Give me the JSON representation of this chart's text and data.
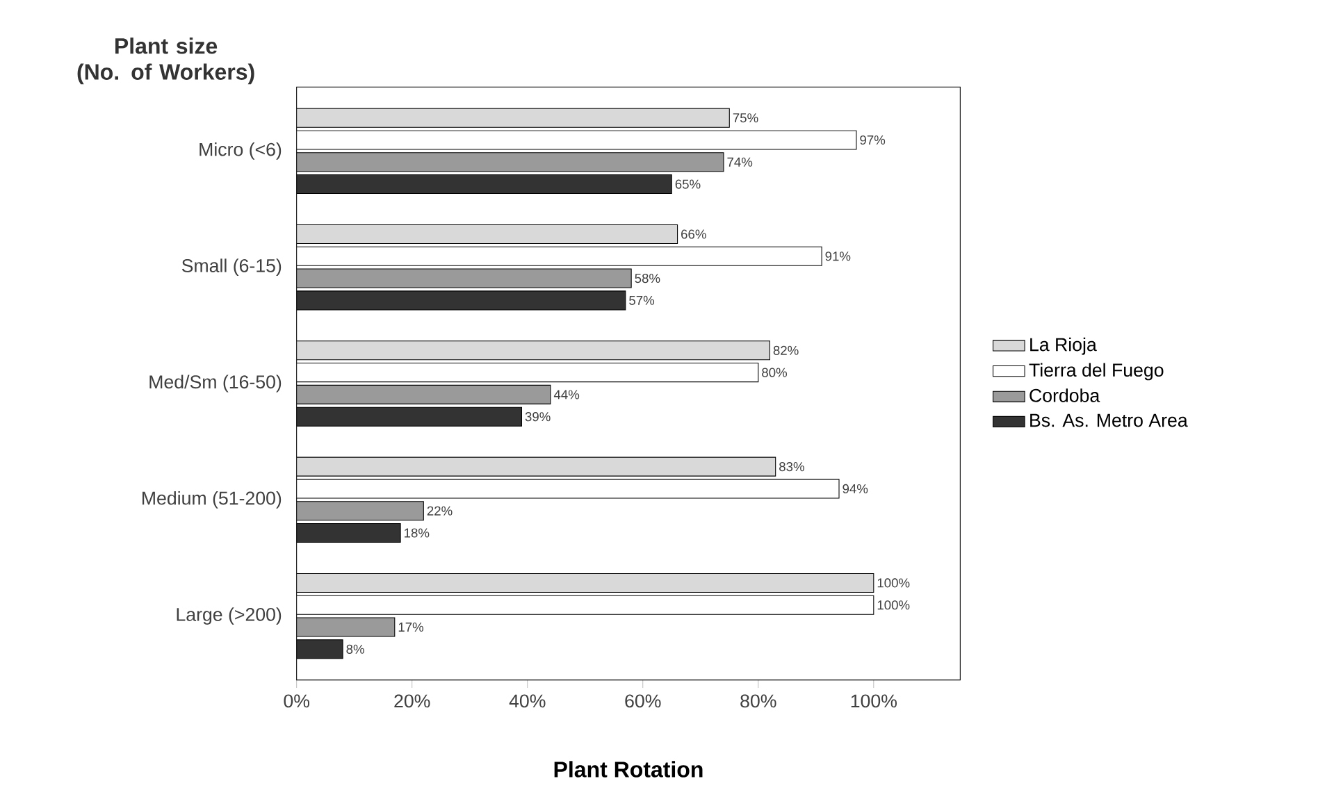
{
  "chart_data": {
    "type": "bar",
    "orientation": "horizontal",
    "ylabel": "Plant size\n(No. of Workers)",
    "xlabel": "Plant Rotation",
    "categories": [
      "Micro (<6)",
      "Small (6-15)",
      "Med/Sm (16-50)",
      "Medium (51-200)",
      "Large (>200)"
    ],
    "series": [
      {
        "name": "La Rioja",
        "color": "#d9d9d9",
        "values": [
          75,
          66,
          82,
          83,
          100
        ],
        "value_labels": [
          "75%",
          "66%",
          "82%",
          "83%",
          "100%"
        ]
      },
      {
        "name": "Tierra del Fuego",
        "color": "#ffffff",
        "values": [
          97,
          91,
          80,
          94,
          100
        ],
        "value_labels": [
          "97%",
          "91%",
          "80%",
          "94%",
          "100%"
        ]
      },
      {
        "name": "Cordoba",
        "color": "#9a9a9a",
        "values": [
          74,
          58,
          44,
          22,
          17
        ],
        "value_labels": [
          "74%",
          "58%",
          "44%",
          "22%",
          "17%"
        ]
      },
      {
        "name": "Bs. As. Metro Area",
        "color": "#333333",
        "values": [
          65,
          57,
          39,
          18,
          8
        ],
        "value_labels": [
          "65%",
          "57%",
          "39%",
          "18%",
          "8%"
        ]
      }
    ],
    "xlim": [
      0,
      115
    ],
    "xticks": [
      {
        "value": 0,
        "label": "0%"
      },
      {
        "value": 20,
        "label": "20%"
      },
      {
        "value": 40,
        "label": "40%"
      },
      {
        "value": 60,
        "label": "60%"
      },
      {
        "value": 80,
        "label": "80%"
      },
      {
        "value": 100,
        "label": "100%"
      }
    ],
    "legend": "right",
    "grid": false
  }
}
